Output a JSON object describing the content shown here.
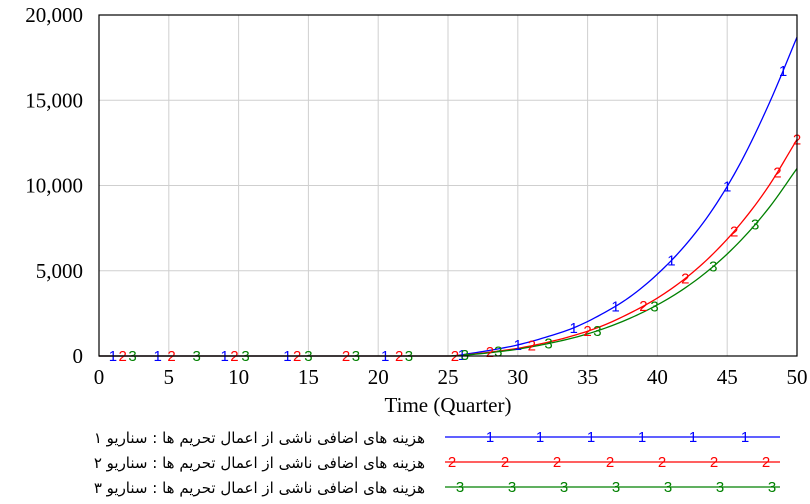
{
  "chart_data": {
    "type": "line",
    "xlabel": "Time (Quarter)",
    "ylabel": "",
    "xlim": [
      0,
      50
    ],
    "ylim": [
      0,
      20000
    ],
    "x_ticks": [
      "0",
      "5",
      "10",
      "15",
      "20",
      "25",
      "30",
      "35",
      "40",
      "45",
      "50"
    ],
    "y_ticks": [
      "0",
      "5,000",
      "10,000",
      "15,000",
      "20,000"
    ],
    "grid": true,
    "legend_position": "bottom",
    "x": [
      0,
      20,
      25,
      27,
      29,
      30,
      32,
      34,
      36,
      38,
      40,
      42,
      44,
      46,
      48,
      50
    ],
    "series": [
      {
        "name": "هزینه های اضافی ناشی از اعمال تحریم ها : سناریو ۱",
        "marker": "1",
        "color": "#0000ff",
        "values": [
          0,
          0,
          0,
          200,
          480,
          650,
          1100,
          1650,
          2450,
          3450,
          4800,
          6500,
          8650,
          11400,
          14800,
          18700
        ]
      },
      {
        "name": "هزینه های اضافی ناشی از اعمال تحریم ها : سناریو ۲",
        "marker": "2",
        "color": "#ff0000",
        "values": [
          0,
          0,
          0,
          130,
          330,
          450,
          780,
          1200,
          1750,
          2500,
          3400,
          4550,
          6000,
          7800,
          10000,
          12700
        ]
      },
      {
        "name": "هزینه های اضافی ناشی از اعمال تحریم ها : سناریو ۳",
        "marker": "3",
        "color": "#008000",
        "values": [
          0,
          0,
          0,
          110,
          290,
          400,
          700,
          1070,
          1560,
          2200,
          3000,
          4000,
          5250,
          6800,
          8700,
          11000
        ]
      }
    ]
  }
}
